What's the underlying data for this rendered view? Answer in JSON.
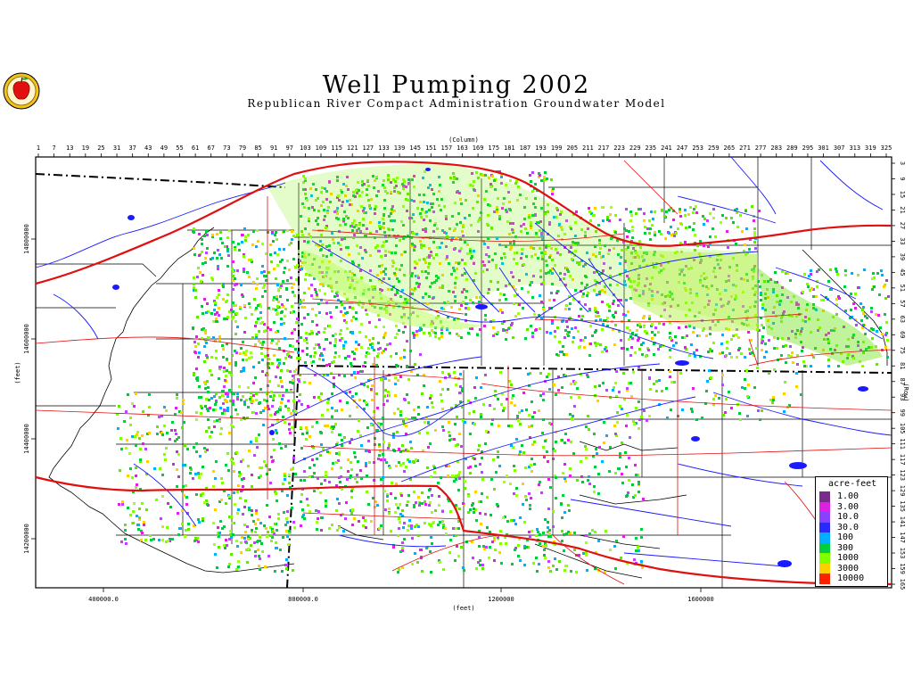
{
  "title": "Well Pumping 2002",
  "subtitle": "Republican River Compact Administration Groundwater Model",
  "top_axis": {
    "label": "(Column)",
    "ticks": [
      "1",
      "7",
      "13",
      "19",
      "25",
      "31",
      "37",
      "43",
      "49",
      "55",
      "61",
      "67",
      "73",
      "79",
      "85",
      "91",
      "97",
      "103",
      "109",
      "115",
      "121",
      "127",
      "133",
      "139",
      "145",
      "151",
      "157",
      "163",
      "169",
      "175",
      "181",
      "187",
      "193",
      "199",
      "205",
      "211",
      "217",
      "223",
      "229",
      "235",
      "241",
      "247",
      "253",
      "259",
      "265",
      "271",
      "277",
      "283",
      "289",
      "295",
      "301",
      "307",
      "313",
      "319",
      "325"
    ]
  },
  "right_axis": {
    "label": "(Row)",
    "ticks": [
      "3",
      "9",
      "15",
      "21",
      "27",
      "33",
      "39",
      "45",
      "51",
      "57",
      "63",
      "69",
      "75",
      "81",
      "87",
      "93",
      "99",
      "105",
      "111",
      "117",
      "123",
      "129",
      "135",
      "141",
      "147",
      "153",
      "159",
      "165"
    ]
  },
  "bottom_axis": {
    "label": "(feet)",
    "ticks": [
      "400000.0",
      "800000.0",
      "1200000",
      "1600000"
    ]
  },
  "left_axis": {
    "label": "(feet)",
    "ticks": [
      "14800000",
      "14600000",
      "14400000",
      "14200000"
    ]
  },
  "legend": {
    "title": "acre-feet",
    "items": [
      {
        "label": "1.00",
        "color": "#7a2a8a"
      },
      {
        "label": "3.00",
        "color": "#e020e0"
      },
      {
        "label": "10.0",
        "color": "#8a40ff"
      },
      {
        "label": "30.0",
        "color": "#2a2aff"
      },
      {
        "label": "100",
        "color": "#00b0ff"
      },
      {
        "label": "300",
        "color": "#00d040"
      },
      {
        "label": "1000",
        "color": "#80ff00"
      },
      {
        "label": "3000",
        "color": "#ffd000"
      },
      {
        "label": "10000",
        "color": "#ff2000"
      }
    ]
  },
  "logo": {
    "icon": "apple-seal-icon"
  },
  "colors": {
    "roads": "#e01010",
    "rivers": "#1a1aff",
    "boundaries": "#000000",
    "pumping_low": "#00d040",
    "pumping_high": "#80ff00"
  }
}
